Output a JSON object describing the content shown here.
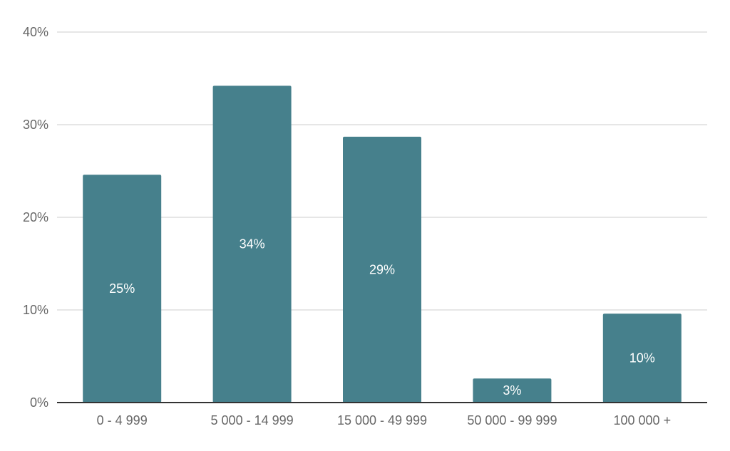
{
  "chart_data": {
    "type": "bar",
    "title": "",
    "xlabel": "",
    "ylabel": "",
    "categories": [
      "0 - 4 999",
      "5 000 - 14 999",
      "15 000 - 49 999",
      "50 000 - 99 999",
      "100 000 +"
    ],
    "values": [
      24.6,
      34.2,
      28.7,
      2.6,
      9.6
    ],
    "data_labels": [
      "25%",
      "34%",
      "29%",
      "3%",
      "10%"
    ],
    "ylim": [
      0,
      40
    ],
    "yticks": [
      0,
      10,
      20,
      30,
      40
    ],
    "ytick_labels": [
      "0%",
      "10%",
      "20%",
      "30%",
      "40%"
    ],
    "grid": true,
    "legend": "none",
    "colors": {
      "bar": "#46808c",
      "grid": "#cccccc",
      "axis": "#333333",
      "text": "#666666",
      "data_label": "#ffffff"
    }
  }
}
